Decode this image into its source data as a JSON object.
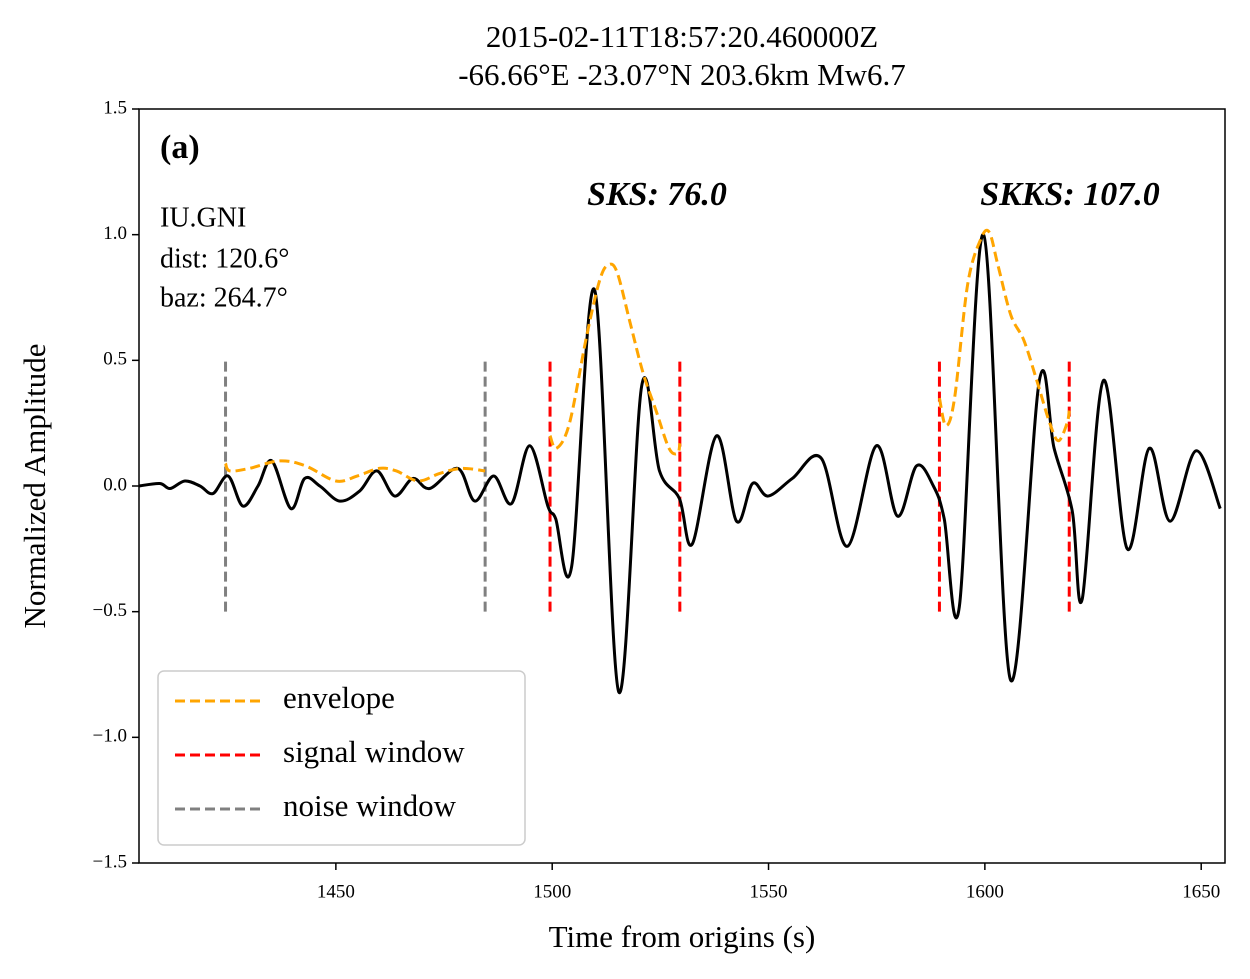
{
  "chart_data": {
    "type": "line",
    "title": "2015-02-11T18:57:20.460000Z",
    "subtitle": "-66.66°E -23.07°N 203.6km Mw6.7",
    "x_label": "Time from origins (s)",
    "y_label": "Normalized Amplitude",
    "xlim": [
      1404.5,
      1655.5
    ],
    "ylim": [
      -1.5,
      1.5
    ],
    "xticks": [
      1450,
      1500,
      1550,
      1600,
      1650
    ],
    "yticks": [
      {
        "value": -1.5,
        "label": "−1.5"
      },
      {
        "value": -1.0,
        "label": "−1.0"
      },
      {
        "value": -0.5,
        "label": "−0.5"
      },
      {
        "value": 0,
        "label": "0.0"
      },
      {
        "value": 0.5,
        "label": "0.5"
      },
      {
        "value": 1.0,
        "label": "1.0"
      },
      {
        "value": 1.5,
        "label": "1.5"
      }
    ],
    "annotations": [
      "(a)",
      "IU.GNI",
      "dist: 120.6°",
      "baz: 264.7°",
      "SKS: 76.0",
      "SKKS: 107.0"
    ],
    "series": [
      {
        "color": "#000000",
        "x": [
          1404.5,
          1409.3,
          1411.7,
          1415.1,
          1418.6,
          1421.6,
          1425.1,
          1428.5,
          1432.0,
          1435.2,
          1439.6,
          1442.8,
          1446.3,
          1450.9,
          1455.5,
          1459.5,
          1463.6,
          1467.8,
          1471.7,
          1478.2,
          1482.1,
          1486.5,
          1490.6,
          1494.8,
          1499.0,
          1500.8,
          1504.5,
          1509.8,
          1515.4,
          1520.7,
          1524.8,
          1529.4,
          1532.4,
          1538.0,
          1542.6,
          1546.3,
          1549.9,
          1555.5,
          1562.2,
          1568.2,
          1574.9,
          1579.8,
          1584.2,
          1588.1,
          1590.6,
          1594.1,
          1599.7,
          1605.9,
          1612.6,
          1616.0,
          1620.2,
          1622.5,
          1627.4,
          1632.9,
          1638.0,
          1642.8,
          1648.8,
          1654.4
        ],
        "values": [
          0.0,
          0.01,
          -0.01,
          0.02,
          0.0,
          -0.03,
          0.04,
          -0.08,
          0.0,
          0.1,
          -0.09,
          0.03,
          0.0,
          -0.06,
          -0.02,
          0.06,
          -0.04,
          0.03,
          -0.01,
          0.07,
          -0.06,
          0.04,
          -0.07,
          0.16,
          -0.08,
          -0.13,
          -0.32,
          0.78,
          -0.82,
          0.4,
          0.06,
          -0.05,
          -0.23,
          0.2,
          -0.14,
          0.01,
          -0.04,
          0.03,
          0.11,
          -0.24,
          0.16,
          -0.12,
          0.08,
          0.0,
          -0.13,
          -0.48,
          1.0,
          -0.77,
          0.42,
          0.15,
          -0.1,
          -0.45,
          0.42,
          -0.25,
          0.15,
          -0.14,
          0.14,
          -0.09
        ]
      },
      {
        "name": "envelope",
        "color": "#ffa500",
        "dashed": true,
        "x": [
          1424.5,
          1425.5,
          1430,
          1437,
          1443,
          1450,
          1455,
          1460,
          1464,
          1469,
          1474,
          1479,
          1484.5,
          null,
          1499.5,
          1501,
          1504,
          1508,
          1511,
          1513,
          1515,
          1518,
          1521,
          1524,
          1527,
          1529,
          1529.5,
          null,
          1589.5,
          1591,
          1593,
          1596,
          1599,
          1601,
          1603,
          1606,
          1609,
          1612,
          1615,
          1617,
          1619,
          1619.5
        ],
        "values": [
          0.09,
          0.06,
          0.07,
          0.1,
          0.08,
          0.02,
          0.04,
          0.07,
          0.06,
          0.02,
          0.05,
          0.07,
          0.06,
          null,
          0.2,
          0.15,
          0.25,
          0.6,
          0.82,
          0.88,
          0.85,
          0.65,
          0.45,
          0.3,
          0.15,
          0.13,
          0.17,
          null,
          0.35,
          0.24,
          0.35,
          0.8,
          0.98,
          1.01,
          0.88,
          0.68,
          0.58,
          0.42,
          0.25,
          0.18,
          0.25,
          0.3
        ]
      }
    ],
    "windows": [
      {
        "name": "signal window",
        "color": "#ff0000",
        "x": [
          1499.5,
          1529.5,
          1589.5,
          1619.5
        ],
        "ymin": -0.5,
        "ymax": 0.5
      },
      {
        "name": "noise window",
        "color": "#808080",
        "x": [
          1424.5,
          1484.5
        ],
        "ymin": -0.5,
        "ymax": 0.5
      }
    ],
    "legend": "lower left"
  }
}
